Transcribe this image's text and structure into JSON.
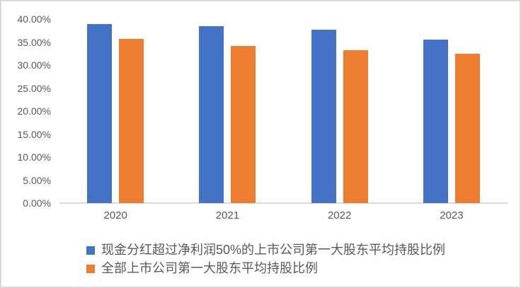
{
  "chart_data": {
    "type": "bar",
    "title": "",
    "xlabel": "",
    "ylabel": "",
    "categories": [
      "2020",
      "2021",
      "2022",
      "2023"
    ],
    "series": [
      {
        "name": "现金分红超过净利润50%的上市公司第一大股东平均持股比例",
        "color": "#4472C4",
        "values": [
          39.0,
          38.4,
          37.7,
          35.6
        ]
      },
      {
        "name": "全部上市公司第一大股东平均持股比例",
        "color": "#ED7D31",
        "values": [
          35.7,
          34.2,
          33.2,
          32.4
        ]
      }
    ],
    "ylim": [
      0,
      40
    ],
    "y_tick_step": 5,
    "y_tick_labels": [
      "0.00%",
      "5.00%",
      "10.00%",
      "15.00%",
      "20.00%",
      "25.00%",
      "30.00%",
      "35.00%",
      "40.00%"
    ],
    "grid": false,
    "legend_position": "bottom-left",
    "colors": {
      "axis_line": "#D9D9D9",
      "frame_border": "#D9D9D9",
      "text": "#595959",
      "background": "#FFFFFF"
    }
  }
}
